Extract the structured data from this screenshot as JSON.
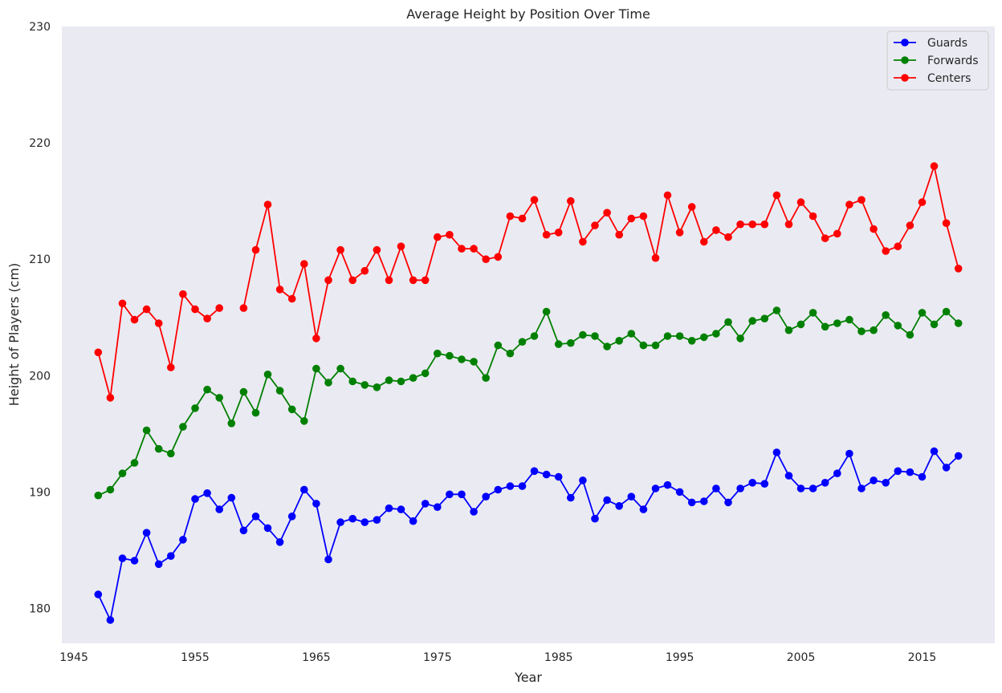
{
  "chart_data": {
    "type": "line",
    "title": "Average Height by Position Over Time",
    "xlabel": "Year",
    "ylabel": "Height of Players (cm)",
    "xlim": [
      1944,
      2021
    ],
    "ylim": [
      177,
      230
    ],
    "xticks": [
      1945,
      1955,
      1965,
      1975,
      1985,
      1995,
      2005,
      2015
    ],
    "yticks": [
      180,
      190,
      200,
      210,
      220,
      230
    ],
    "grid": false,
    "legend": "top-right",
    "x": [
      1947,
      1948,
      1949,
      1950,
      1951,
      1952,
      1953,
      1954,
      1955,
      1956,
      1957,
      1958,
      1959,
      1960,
      1961,
      1962,
      1963,
      1964,
      1965,
      1966,
      1967,
      1968,
      1969,
      1970,
      1971,
      1972,
      1973,
      1974,
      1975,
      1976,
      1977,
      1978,
      1979,
      1980,
      1981,
      1982,
      1983,
      1984,
      1985,
      1986,
      1987,
      1988,
      1989,
      1990,
      1991,
      1992,
      1993,
      1994,
      1995,
      1996,
      1997,
      1998,
      1999,
      2000,
      2001,
      2002,
      2003,
      2004,
      2005,
      2006,
      2007,
      2008,
      2009,
      2010,
      2011,
      2012,
      2013,
      2014,
      2015,
      2016,
      2017,
      2018
    ],
    "series": [
      {
        "name": "Guards",
        "color": "#0000ff",
        "values": [
          181.2,
          179.0,
          184.3,
          184.1,
          186.5,
          183.8,
          184.5,
          185.9,
          189.4,
          189.9,
          188.5,
          189.5,
          186.7,
          187.9,
          186.9,
          185.7,
          187.9,
          190.2,
          189.0,
          184.2,
          187.4,
          187.7,
          187.4,
          187.6,
          188.6,
          188.5,
          187.5,
          189.0,
          188.7,
          189.8,
          189.8,
          188.3,
          189.6,
          190.2,
          190.5,
          190.5,
          191.8,
          191.5,
          191.3,
          189.5,
          191.0,
          187.7,
          189.3,
          188.8,
          189.6,
          188.5,
          190.3,
          190.6,
          190.0,
          189.1,
          189.2,
          190.3,
          189.1,
          190.3,
          190.8,
          190.7,
          193.4,
          191.4,
          190.3,
          190.3,
          190.8,
          191.6,
          193.3,
          190.3,
          191.0,
          190.8,
          191.8,
          191.7,
          191.3,
          193.5,
          192.1,
          193.1
        ]
      },
      {
        "name": "Forwards",
        "color": "#008000",
        "values": [
          189.7,
          190.2,
          191.6,
          192.5,
          195.3,
          193.7,
          193.3,
          195.6,
          197.2,
          198.8,
          198.1,
          195.9,
          198.6,
          196.8,
          200.1,
          198.7,
          197.1,
          196.1,
          200.6,
          199.4,
          200.6,
          199.5,
          199.2,
          199.0,
          199.6,
          199.5,
          199.8,
          200.2,
          201.9,
          201.7,
          201.4,
          201.2,
          199.8,
          202.6,
          201.9,
          202.9,
          203.4,
          205.5,
          202.7,
          202.8,
          203.5,
          203.4,
          202.5,
          203.0,
          203.6,
          202.6,
          202.6,
          203.4,
          203.4,
          203.0,
          203.3,
          203.6,
          204.6,
          203.2,
          204.7,
          204.9,
          205.6,
          203.9,
          204.4,
          205.4,
          204.2,
          204.5,
          204.8,
          203.8,
          203.9,
          205.2,
          204.3,
          203.5,
          205.4,
          204.4,
          205.5,
          204.5
        ]
      },
      {
        "name": "Centers",
        "color": "#ff0000",
        "values": [
          202.0,
          198.1,
          206.2,
          204.8,
          205.7,
          204.5,
          200.7,
          207.0,
          205.7,
          204.9,
          205.8,
          null,
          205.8,
          210.8,
          214.7,
          207.4,
          206.6,
          209.6,
          203.2,
          208.2,
          210.8,
          208.2,
          209.0,
          210.8,
          208.2,
          211.1,
          208.2,
          208.2,
          211.9,
          212.1,
          210.9,
          210.9,
          210.0,
          210.2,
          213.7,
          213.5,
          215.1,
          212.1,
          212.3,
          215.0,
          211.5,
          212.9,
          214.0,
          212.1,
          213.5,
          213.7,
          210.1,
          215.5,
          212.3,
          214.5,
          211.5,
          212.5,
          211.9,
          213.0,
          213.0,
          213.0,
          215.5,
          213.0,
          214.9,
          213.7,
          211.8,
          212.2,
          214.7,
          215.1,
          212.6,
          210.7,
          211.1,
          212.9,
          214.9,
          218.0,
          213.1,
          209.2
        ]
      }
    ]
  }
}
